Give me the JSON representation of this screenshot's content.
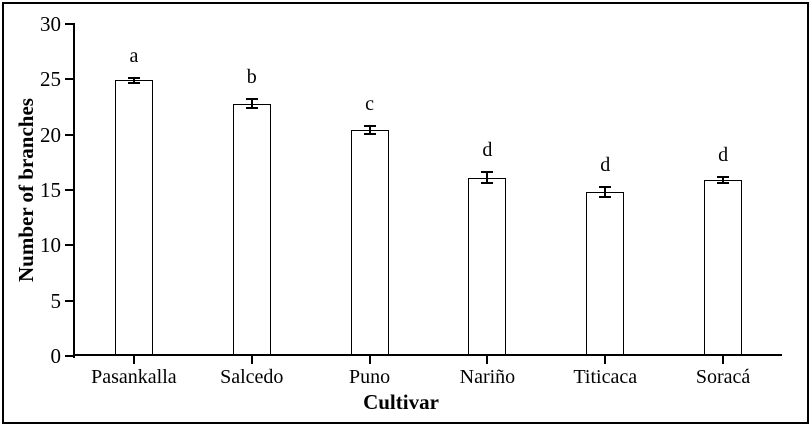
{
  "figure": {
    "background": "#ffffff",
    "frame_border_color": "#000000",
    "ink_color": "#000000",
    "bar_fill": "#ffffff"
  },
  "chart_data": {
    "type": "bar",
    "title": "",
    "xlabel": "Cultivar",
    "ylabel": "Number of branches",
    "categories": [
      "Pasankalla",
      "Salcedo",
      "Puno",
      "Nariño",
      "Titicaca",
      "Soracá"
    ],
    "values": [
      24.9,
      22.8,
      20.4,
      16.1,
      14.8,
      15.9
    ],
    "errors": [
      0.25,
      0.4,
      0.35,
      0.5,
      0.45,
      0.3
    ],
    "sig_letters": [
      "a",
      "b",
      "c",
      "d",
      "d",
      "d"
    ],
    "ylim": [
      0,
      30
    ],
    "yticks": [
      0,
      5,
      10,
      15,
      20,
      25,
      30
    ],
    "grid": false,
    "legend": null,
    "error_bars": true
  }
}
